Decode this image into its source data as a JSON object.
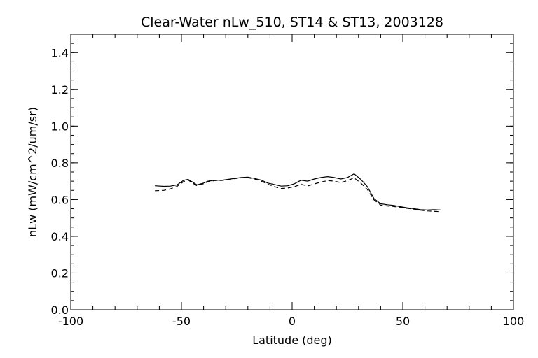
{
  "chart_data": {
    "type": "line",
    "title": "Clear-Water nLw_510, ST14 & ST13, 2003128",
    "xlabel": "Latitude (deg)",
    "ylabel": "nLw (mW/cm^2/um/sr)",
    "xlim": [
      -100,
      100
    ],
    "ylim": [
      0.0,
      1.5
    ],
    "x_ticks": [
      -100,
      -50,
      0,
      50,
      100
    ],
    "x_tick_labels": [
      "-100",
      "-50",
      "0",
      "50",
      "100"
    ],
    "y_ticks": [
      0.0,
      0.2,
      0.4,
      0.6,
      0.8,
      1.0,
      1.2,
      1.4
    ],
    "y_tick_labels": [
      "0.0",
      "0.2",
      "0.4",
      "0.6",
      "0.8",
      "1.0",
      "1.2",
      "1.4"
    ],
    "x_minor_step": 10,
    "y_minor_step": 0.05,
    "grid": false,
    "series": [
      {
        "style": "solid",
        "color": "#000000",
        "x": [
          -62,
          -58,
          -55,
          -52,
          -49,
          -47,
          -45,
          -43,
          -40,
          -38,
          -35,
          -32,
          -29,
          -26,
          -23,
          -20,
          -17,
          -14,
          -11,
          -8,
          -5,
          -2,
          1,
          4,
          7,
          10,
          13,
          16,
          19,
          22,
          25,
          28,
          31,
          34,
          37,
          40,
          43,
          46,
          49,
          52,
          55,
          58,
          61,
          64,
          67
        ],
        "y": [
          0.675,
          0.672,
          0.673,
          0.68,
          0.705,
          0.71,
          0.695,
          0.68,
          0.69,
          0.7,
          0.705,
          0.705,
          0.71,
          0.715,
          0.72,
          0.722,
          0.715,
          0.706,
          0.69,
          0.682,
          0.673,
          0.675,
          0.686,
          0.705,
          0.7,
          0.712,
          0.72,
          0.725,
          0.72,
          0.712,
          0.72,
          0.74,
          0.71,
          0.67,
          0.605,
          0.577,
          0.572,
          0.568,
          0.561,
          0.555,
          0.55,
          0.545,
          0.543,
          0.545,
          0.543
        ]
      },
      {
        "style": "dashed",
        "color": "#000000",
        "x": [
          -62,
          -58,
          -55,
          -52,
          -49,
          -47,
          -45,
          -43,
          -40,
          -38,
          -35,
          -32,
          -29,
          -26,
          -23,
          -20,
          -17,
          -14,
          -11,
          -8,
          -5,
          -2,
          1,
          4,
          7,
          10,
          13,
          16,
          19,
          22,
          25,
          28,
          31,
          34,
          37,
          40,
          43,
          46,
          49,
          52,
          55,
          58,
          61,
          64,
          67
        ],
        "y": [
          0.648,
          0.65,
          0.658,
          0.672,
          0.698,
          0.707,
          0.69,
          0.675,
          0.686,
          0.697,
          0.703,
          0.704,
          0.708,
          0.714,
          0.718,
          0.719,
          0.712,
          0.7,
          0.684,
          0.67,
          0.66,
          0.663,
          0.67,
          0.683,
          0.674,
          0.685,
          0.695,
          0.703,
          0.7,
          0.692,
          0.703,
          0.718,
          0.69,
          0.655,
          0.598,
          0.57,
          0.565,
          0.562,
          0.557,
          0.552,
          0.548,
          0.542,
          0.538,
          0.536,
          0.534
        ]
      }
    ]
  }
}
